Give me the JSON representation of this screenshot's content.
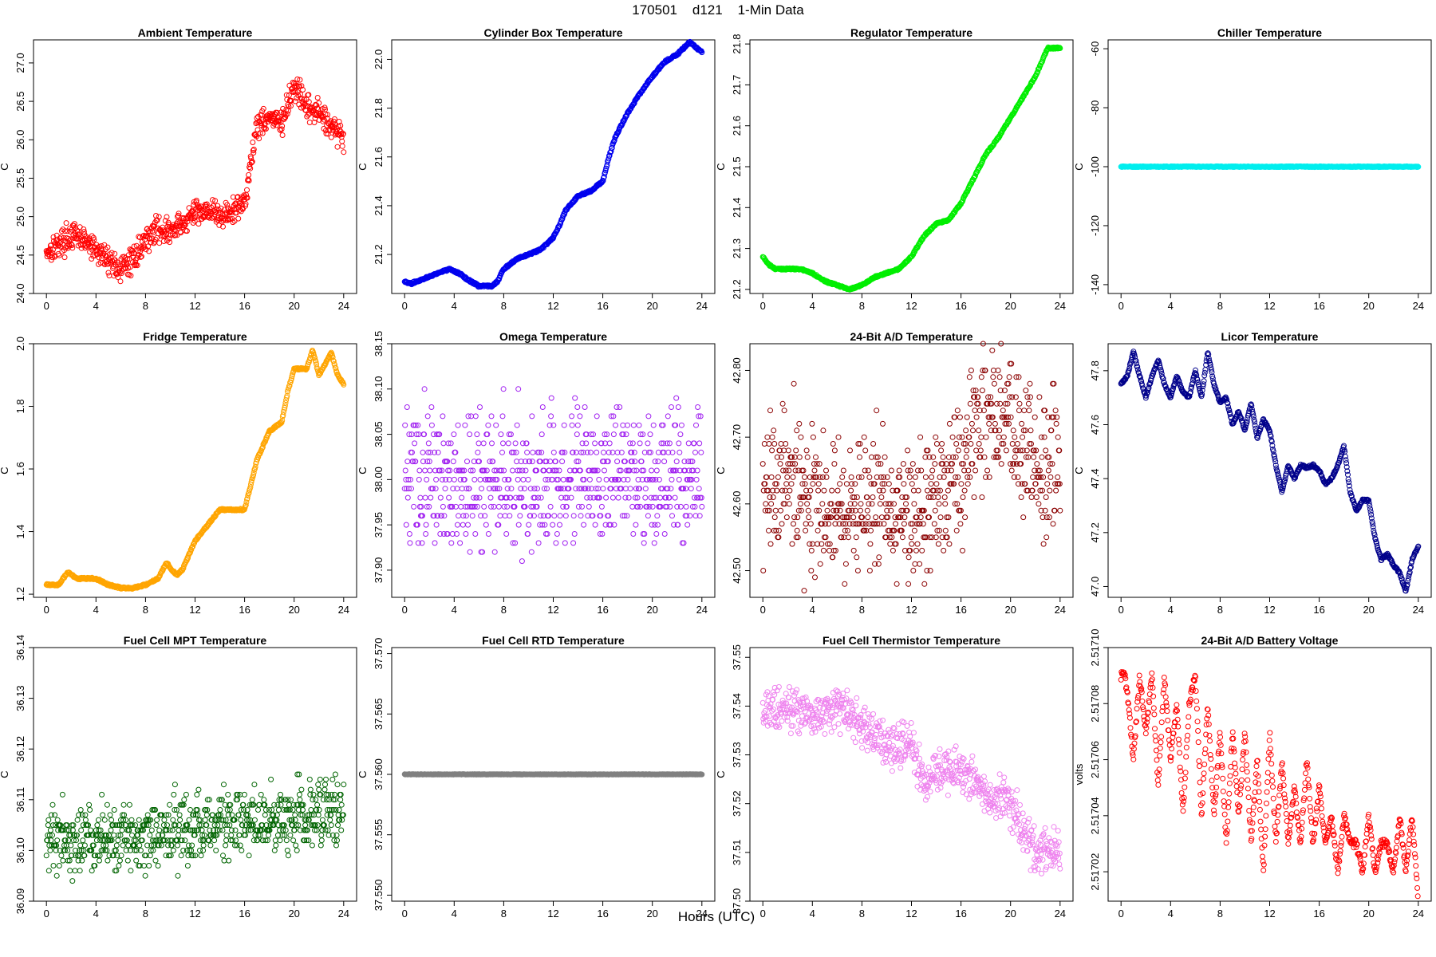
{
  "header": {
    "title": "170501    d121    1-Min Data"
  },
  "footer": {
    "xlabel": "Hours (UTC)"
  },
  "chart_data": [
    {
      "type": "scatter",
      "title": "Ambient Temperature",
      "ylabel": "C",
      "color": "#ff0000",
      "xlim": [
        0,
        24
      ],
      "ylim": [
        24.0,
        27.3
      ],
      "xticks": [
        "0",
        "4",
        "8",
        "12",
        "16",
        "20",
        "24"
      ],
      "yticks": [
        "24.0",
        "24.5",
        "25.0",
        "25.5",
        "26.0",
        "26.5",
        "27.0"
      ],
      "x": [
        0,
        1,
        2,
        3,
        4,
        5,
        6,
        7,
        8,
        9,
        10,
        11,
        12,
        13,
        14,
        15,
        16,
        17,
        18,
        19,
        20,
        21,
        22,
        23,
        24
      ],
      "y": [
        24.55,
        24.65,
        24.75,
        24.7,
        24.55,
        24.45,
        24.3,
        24.45,
        24.7,
        24.85,
        24.8,
        24.9,
        25.05,
        25.1,
        25.0,
        25.05,
        25.2,
        26.2,
        26.3,
        26.2,
        26.7,
        26.4,
        26.35,
        26.2,
        26.0
      ],
      "spread": 0.22
    },
    {
      "type": "line",
      "title": "Cylinder Box Temperature",
      "ylabel": "C",
      "color": "#0000ee",
      "xlim": [
        0,
        24
      ],
      "ylim": [
        21.04,
        22.08
      ],
      "xticks": [
        "0",
        "4",
        "8",
        "12",
        "16",
        "20",
        "24"
      ],
      "yticks": [
        "21.2",
        "21.4",
        "21.6",
        "21.8",
        "22.0"
      ],
      "x": [
        0,
        0.5,
        1,
        2,
        3,
        3.7,
        4.5,
        5,
        6,
        7,
        7.5,
        8,
        9,
        10,
        11,
        12,
        12.5,
        13,
        14,
        15,
        16,
        16.5,
        17,
        18,
        19,
        20,
        21,
        22,
        23,
        24
      ],
      "y": [
        21.09,
        21.08,
        21.09,
        21.11,
        21.13,
        21.14,
        21.12,
        21.1,
        21.07,
        21.07,
        21.09,
        21.14,
        21.18,
        21.2,
        21.22,
        21.27,
        21.32,
        21.38,
        21.44,
        21.46,
        21.5,
        21.6,
        21.68,
        21.78,
        21.86,
        21.93,
        21.99,
        22.02,
        22.07,
        22.03
      ],
      "spread": 0.008
    },
    {
      "type": "line",
      "title": "Regulator Temperature",
      "ylabel": "C",
      "color": "#00ee00",
      "xlim": [
        0,
        24
      ],
      "ylim": [
        21.19,
        21.81
      ],
      "xticks": [
        "0",
        "4",
        "8",
        "12",
        "16",
        "20",
        "24"
      ],
      "yticks": [
        "21.2",
        "21.3",
        "21.4",
        "21.5",
        "21.6",
        "21.7",
        "21.8"
      ],
      "x": [
        0,
        0.5,
        1,
        2,
        3,
        4,
        5,
        6,
        7,
        8,
        9,
        10,
        11,
        12,
        13,
        14,
        15,
        16,
        17,
        18,
        19,
        20,
        21,
        22,
        23,
        24
      ],
      "y": [
        21.28,
        21.26,
        21.25,
        21.25,
        21.25,
        21.24,
        21.22,
        21.21,
        21.2,
        21.21,
        21.23,
        21.24,
        21.25,
        21.28,
        21.33,
        21.36,
        21.37,
        21.41,
        21.47,
        21.53,
        21.57,
        21.62,
        21.67,
        21.72,
        21.79,
        21.79
      ],
      "spread": 0.004
    },
    {
      "type": "line",
      "title": "Chiller Temperature",
      "ylabel": "C",
      "color": "#00eeee",
      "xlim": [
        0,
        24
      ],
      "ylim": [
        -143,
        -57
      ],
      "xticks": [
        "0",
        "4",
        "8",
        "12",
        "16",
        "20",
        "24"
      ],
      "yticks": [
        "-140",
        "-120",
        "-100",
        "-80",
        "-60"
      ],
      "x": [
        0,
        24
      ],
      "y": [
        -100,
        -100
      ],
      "spread": 0.3
    },
    {
      "type": "line",
      "title": "Fridge Temperature",
      "ylabel": "C",
      "color": "#ffa500",
      "xlim": [
        0,
        24
      ],
      "ylim": [
        1.19,
        2.0
      ],
      "xticks": [
        "0",
        "4",
        "8",
        "12",
        "16",
        "20",
        "24"
      ],
      "yticks": [
        "1.2",
        "1.4",
        "1.6",
        "1.8",
        "2.0"
      ],
      "x": [
        0,
        1,
        1.7,
        2.5,
        3,
        4,
        5,
        6,
        7,
        8,
        9,
        9.7,
        10.5,
        11,
        12,
        13,
        14,
        15,
        16,
        17,
        18,
        19,
        19.5,
        20,
        21,
        21.5,
        22,
        23,
        23.5,
        24
      ],
      "y": [
        1.23,
        1.23,
        1.27,
        1.25,
        1.25,
        1.25,
        1.23,
        1.22,
        1.22,
        1.23,
        1.25,
        1.3,
        1.26,
        1.28,
        1.37,
        1.42,
        1.47,
        1.47,
        1.47,
        1.63,
        1.72,
        1.75,
        1.85,
        1.92,
        1.92,
        1.98,
        1.9,
        1.97,
        1.9,
        1.87
      ],
      "spread": 0.006
    },
    {
      "type": "scatter",
      "title": "Omega Temperature",
      "ylabel": "C",
      "color": "#a020f0",
      "xlim": [
        0,
        24
      ],
      "ylim": [
        37.87,
        38.15
      ],
      "xticks": [
        "0",
        "4",
        "8",
        "12",
        "16",
        "20",
        "24"
      ],
      "yticks": [
        "37.90",
        "37.95",
        "38.00",
        "38.05",
        "38.10",
        "38.15"
      ],
      "x": [
        0,
        2,
        4,
        6,
        8,
        10,
        12,
        14,
        16,
        18,
        20,
        22,
        24
      ],
      "y": [
        38.0,
        38.0,
        38.0,
        38.0,
        38.0,
        38.0,
        38.0,
        38.0,
        38.0,
        38.0,
        38.0,
        38.0,
        38.0
      ],
      "spread": 0.1,
      "quantize": 0.01
    },
    {
      "type": "scatter",
      "title": "24-Bit A/D Temperature",
      "ylabel": "C",
      "color": "#8b0000",
      "xlim": [
        0,
        24
      ],
      "ylim": [
        42.46,
        42.84
      ],
      "xticks": [
        "0",
        "4",
        "8",
        "12",
        "16",
        "20",
        "24"
      ],
      "yticks": [
        "42.50",
        "42.60",
        "42.70",
        "42.80"
      ],
      "x": [
        0,
        2,
        4,
        6,
        8,
        10,
        12,
        14,
        16,
        17,
        18,
        20,
        22,
        24
      ],
      "y": [
        42.62,
        42.64,
        42.6,
        42.58,
        42.59,
        42.61,
        42.58,
        42.6,
        42.64,
        42.72,
        42.74,
        42.74,
        42.64,
        42.66
      ],
      "spread": 0.14,
      "quantize": 0.01
    },
    {
      "type": "line",
      "title": "Licor Temperature",
      "ylabel": "C",
      "color": "#00008b",
      "xlim": [
        0,
        24
      ],
      "ylim": [
        46.96,
        47.9
      ],
      "xticks": [
        "0",
        "4",
        "8",
        "12",
        "16",
        "20",
        "24"
      ],
      "yticks": [
        "47.0",
        "47.2",
        "47.4",
        "47.6",
        "47.8"
      ],
      "x": [
        0,
        0.5,
        1,
        1.5,
        2,
        2.5,
        3,
        3.5,
        4,
        4.5,
        5,
        5.5,
        6,
        6.5,
        7,
        7.5,
        8,
        8.5,
        9,
        9.5,
        10,
        10.5,
        11,
        11.5,
        12,
        12.5,
        13,
        13.5,
        14,
        14.5,
        15,
        15.5,
        16,
        16.5,
        17,
        17.5,
        18,
        18.5,
        19,
        19.5,
        20,
        20.5,
        21,
        21.5,
        22,
        22.5,
        23,
        23.5,
        24
      ],
      "y": [
        47.75,
        47.78,
        47.87,
        47.78,
        47.7,
        47.78,
        47.84,
        47.75,
        47.7,
        47.78,
        47.72,
        47.7,
        47.8,
        47.7,
        47.87,
        47.75,
        47.68,
        47.7,
        47.6,
        47.65,
        47.58,
        47.68,
        47.55,
        47.62,
        47.58,
        47.45,
        47.35,
        47.45,
        47.4,
        47.45,
        47.44,
        47.45,
        47.43,
        47.38,
        47.4,
        47.45,
        47.52,
        47.35,
        47.28,
        47.32,
        47.32,
        47.18,
        47.1,
        47.12,
        47.08,
        47.05,
        46.98,
        47.1,
        47.15
      ],
      "spread": 0.008
    },
    {
      "type": "scatter",
      "title": "Fuel Cell MPT Temperature",
      "ylabel": "C",
      "color": "#006400",
      "xlim": [
        0,
        24
      ],
      "ylim": [
        36.09,
        36.14
      ],
      "xticks": [
        "0",
        "4",
        "8",
        "12",
        "16",
        "20",
        "24"
      ],
      "yticks": [
        "36.09",
        "36.10",
        "36.11",
        "36.12",
        "36.13",
        "36.14"
      ],
      "x": [
        0,
        4,
        8,
        12,
        16,
        20,
        24
      ],
      "y": [
        36.103,
        36.102,
        36.103,
        36.104,
        36.105,
        36.107,
        36.108
      ],
      "spread": 0.009,
      "quantize": 0.001
    },
    {
      "type": "line",
      "title": "Fuel Cell RTD Temperature",
      "ylabel": "C",
      "color": "#808080",
      "xlim": [
        0,
        24
      ],
      "ylim": [
        37.5495,
        37.5705
      ],
      "xticks": [
        "0",
        "4",
        "8",
        "12",
        "16",
        "20",
        "24"
      ],
      "yticks": [
        "37.550",
        "37.555",
        "37.560",
        "37.565",
        "37.570"
      ],
      "x": [
        0,
        24
      ],
      "y": [
        37.56,
        37.56
      ],
      "spread": 4e-05
    },
    {
      "type": "scatter",
      "title": "Fuel Cell Thermistor Temperature",
      "ylabel": "C",
      "color": "#ee82ee",
      "xlim": [
        0,
        24
      ],
      "ylim": [
        37.5,
        37.552
      ],
      "xticks": [
        "0",
        "4",
        "8",
        "12",
        "16",
        "20",
        "24"
      ],
      "yticks": [
        "37.50",
        "37.51",
        "37.52",
        "37.53",
        "37.54",
        "37.55"
      ],
      "x": [
        0,
        2,
        4,
        6,
        8,
        10,
        12,
        13,
        14,
        16,
        18,
        20,
        22,
        24
      ],
      "y": [
        37.538,
        37.54,
        37.538,
        37.54,
        37.536,
        37.532,
        37.532,
        37.524,
        37.526,
        37.527,
        37.522,
        37.52,
        37.51,
        37.51
      ],
      "spread": 0.006
    },
    {
      "type": "line",
      "title": "24-Bit A/D Battery Voltage",
      "ylabel": "volts",
      "color": "#ff0000",
      "xlim": [
        0,
        24
      ],
      "ylim": [
        2.5170095,
        2.5171
      ],
      "xticks": [
        "0",
        "4",
        "8",
        "12",
        "16",
        "20",
        "24"
      ],
      "yticks": [
        "2.51702",
        "2.51704",
        "2.51706",
        "2.51708",
        "2.51710"
      ],
      "x": [
        0,
        0.3,
        0.6,
        1,
        1.5,
        2,
        2.5,
        3,
        3.5,
        4,
        4.5,
        5,
        5.5,
        6,
        6.5,
        7,
        7.5,
        8,
        8.5,
        9,
        9.5,
        10,
        10.5,
        11,
        11.5,
        12,
        12.5,
        13,
        13.5,
        14,
        14.5,
        15,
        15.5,
        16,
        16.5,
        17,
        17.5,
        18,
        18.5,
        19,
        19.5,
        20,
        20.5,
        21,
        21.5,
        22,
        22.5,
        23,
        23.5,
        24
      ],
      "y": [
        2.51709,
        2.51709,
        2.51708,
        2.51706,
        2.51709,
        2.51707,
        2.51709,
        2.51705,
        2.51709,
        2.51706,
        2.51708,
        2.51704,
        2.51708,
        2.51709,
        2.51704,
        2.51708,
        2.51704,
        2.51707,
        2.51703,
        2.51707,
        2.51704,
        2.51707,
        2.51703,
        2.51706,
        2.51702,
        2.51707,
        2.51703,
        2.51706,
        2.51703,
        2.51705,
        2.51703,
        2.51706,
        2.51703,
        2.51705,
        2.51703,
        2.51704,
        2.51702,
        2.51704,
        2.51703,
        2.51703,
        2.51702,
        2.51704,
        2.51702,
        2.51703,
        2.51703,
        2.51702,
        2.51704,
        2.51702,
        2.51704,
        2.51701
      ],
      "spread": 3e-06
    }
  ]
}
